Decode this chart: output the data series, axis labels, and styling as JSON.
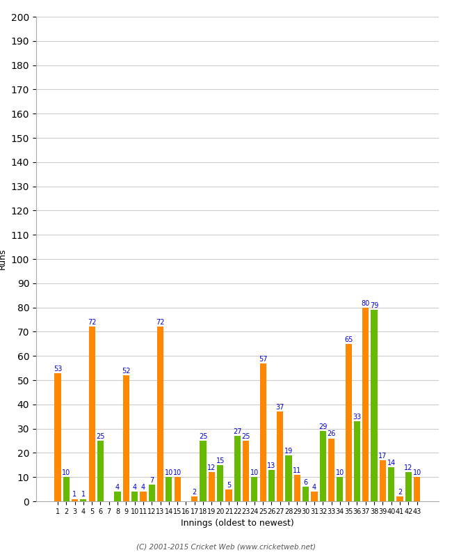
{
  "xlabel": "Innings (oldest to newest)",
  "ylabel": "Runs",
  "ylim": [
    0,
    200
  ],
  "yticks": [
    0,
    10,
    20,
    30,
    40,
    50,
    60,
    70,
    80,
    90,
    100,
    110,
    120,
    130,
    140,
    150,
    160,
    170,
    180,
    190,
    200
  ],
  "innings_labels": [
    "1",
    "2",
    "3",
    "4",
    "5",
    "6",
    "7",
    "8",
    "9",
    "10",
    "11",
    "12",
    "13",
    "14",
    "15",
    "16",
    "17",
    "18",
    "19",
    "20",
    "21",
    "22",
    "23",
    "24",
    "25",
    "26",
    "27",
    "28",
    "29",
    "30",
    "31",
    "32",
    "33",
    "34",
    "35",
    "36",
    "37",
    "38",
    "39",
    "40",
    "41",
    "42",
    "43"
  ],
  "values": [
    53,
    10,
    1,
    1,
    72,
    25,
    0,
    4,
    52,
    4,
    4,
    7,
    72,
    10,
    10,
    0,
    2,
    25,
    12,
    15,
    5,
    27,
    25,
    10,
    57,
    13,
    37,
    19,
    11,
    6,
    4,
    29,
    26,
    10,
    65,
    33,
    80,
    79,
    17,
    14,
    2,
    12,
    10
  ],
  "orange_color": "#ff8800",
  "green_color": "#66bb00",
  "background_color": "#ffffff",
  "grid_color": "#cccccc",
  "label_color": "#0000cc",
  "label_fontsize": 7,
  "bar_width": 0.75,
  "copyright": "(C) 2001-2015 Cricket Web (www.cricketweb.net)"
}
